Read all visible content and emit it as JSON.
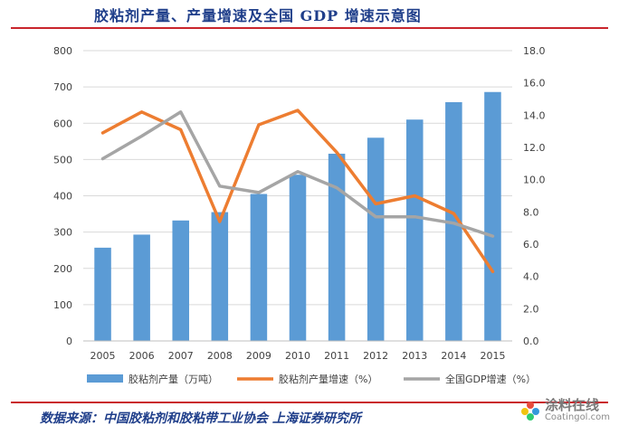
{
  "title": "胶粘剂产量、产量增速及全国 GDP 增速示意图",
  "source": "数据来源：中国胶粘剂和胶粘带工业协会 上海证券研究所",
  "watermark": {
    "cn": "涂料在线",
    "en": "Coatingol.com"
  },
  "chart_data": {
    "type": "bar",
    "categories": [
      "2005",
      "2006",
      "2007",
      "2008",
      "2009",
      "2010",
      "2011",
      "2012",
      "2013",
      "2014",
      "2015"
    ],
    "y_left": {
      "min": 0,
      "max": 800,
      "step": 100,
      "ticks": [
        "0",
        "100",
        "200",
        "300",
        "400",
        "500",
        "600",
        "700",
        "800"
      ]
    },
    "y_right": {
      "min": 0,
      "max": 18,
      "step": 2,
      "ticks": [
        "0.0",
        "2.0",
        "4.0",
        "6.0",
        "8.0",
        "10.0",
        "12.0",
        "14.0",
        "16.0",
        "18.0"
      ]
    },
    "grid": "horizontal",
    "legend_position": "bottom",
    "series": [
      {
        "name": "胶粘剂产量（万吨）",
        "type": "bar",
        "axis": "left",
        "color": "#5b9bd5",
        "values": [
          257,
          293,
          332,
          355,
          405,
          458,
          516,
          560,
          610,
          658,
          686
        ]
      },
      {
        "name": "胶粘剂产量增速（%）",
        "type": "line",
        "axis": "right",
        "color": "#ed7d31",
        "values": [
          12.9,
          14.2,
          13.1,
          7.4,
          13.4,
          14.3,
          11.7,
          8.5,
          9.0,
          7.9,
          4.3
        ]
      },
      {
        "name": "全国GDP增速（%）",
        "type": "line",
        "axis": "right",
        "color": "#a5a5a5",
        "values": [
          11.3,
          12.7,
          14.2,
          9.6,
          9.2,
          10.5,
          9.5,
          7.7,
          7.7,
          7.3,
          6.5
        ]
      }
    ]
  }
}
